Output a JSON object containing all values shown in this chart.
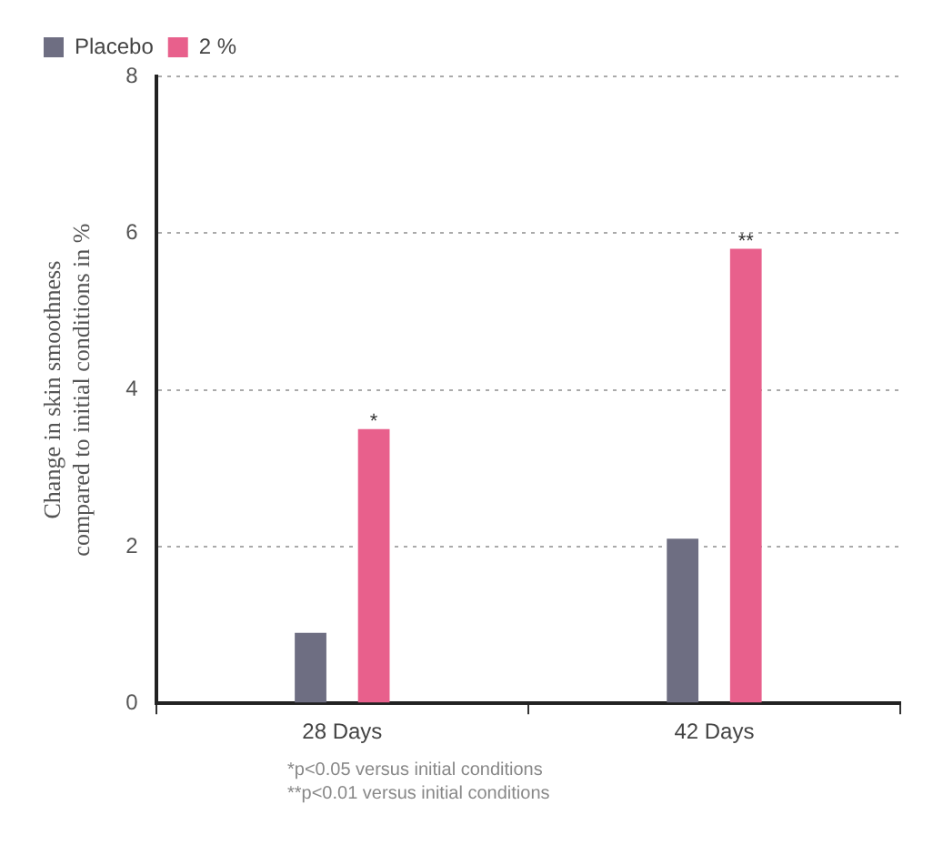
{
  "chart_data": {
    "type": "bar",
    "categories": [
      "28 Days",
      "42 Days"
    ],
    "series": [
      {
        "name": "Placebo",
        "color": "#6e6e82",
        "values": [
          0.9,
          2.1
        ]
      },
      {
        "name": "2 %",
        "color": "#e8608c",
        "values": [
          3.5,
          5.8
        ]
      }
    ],
    "ylabel": "Change in skin smoothness\ncompared to initial conditions in %",
    "ylim": [
      0,
      8
    ],
    "yticks": [
      0,
      2,
      4,
      6,
      8
    ],
    "grid": "y",
    "legend": "top left",
    "annotations": [
      "*",
      "**",
      "*p<0.05 versus initial conditions",
      "**p<0.01 versus initial conditions"
    ]
  }
}
